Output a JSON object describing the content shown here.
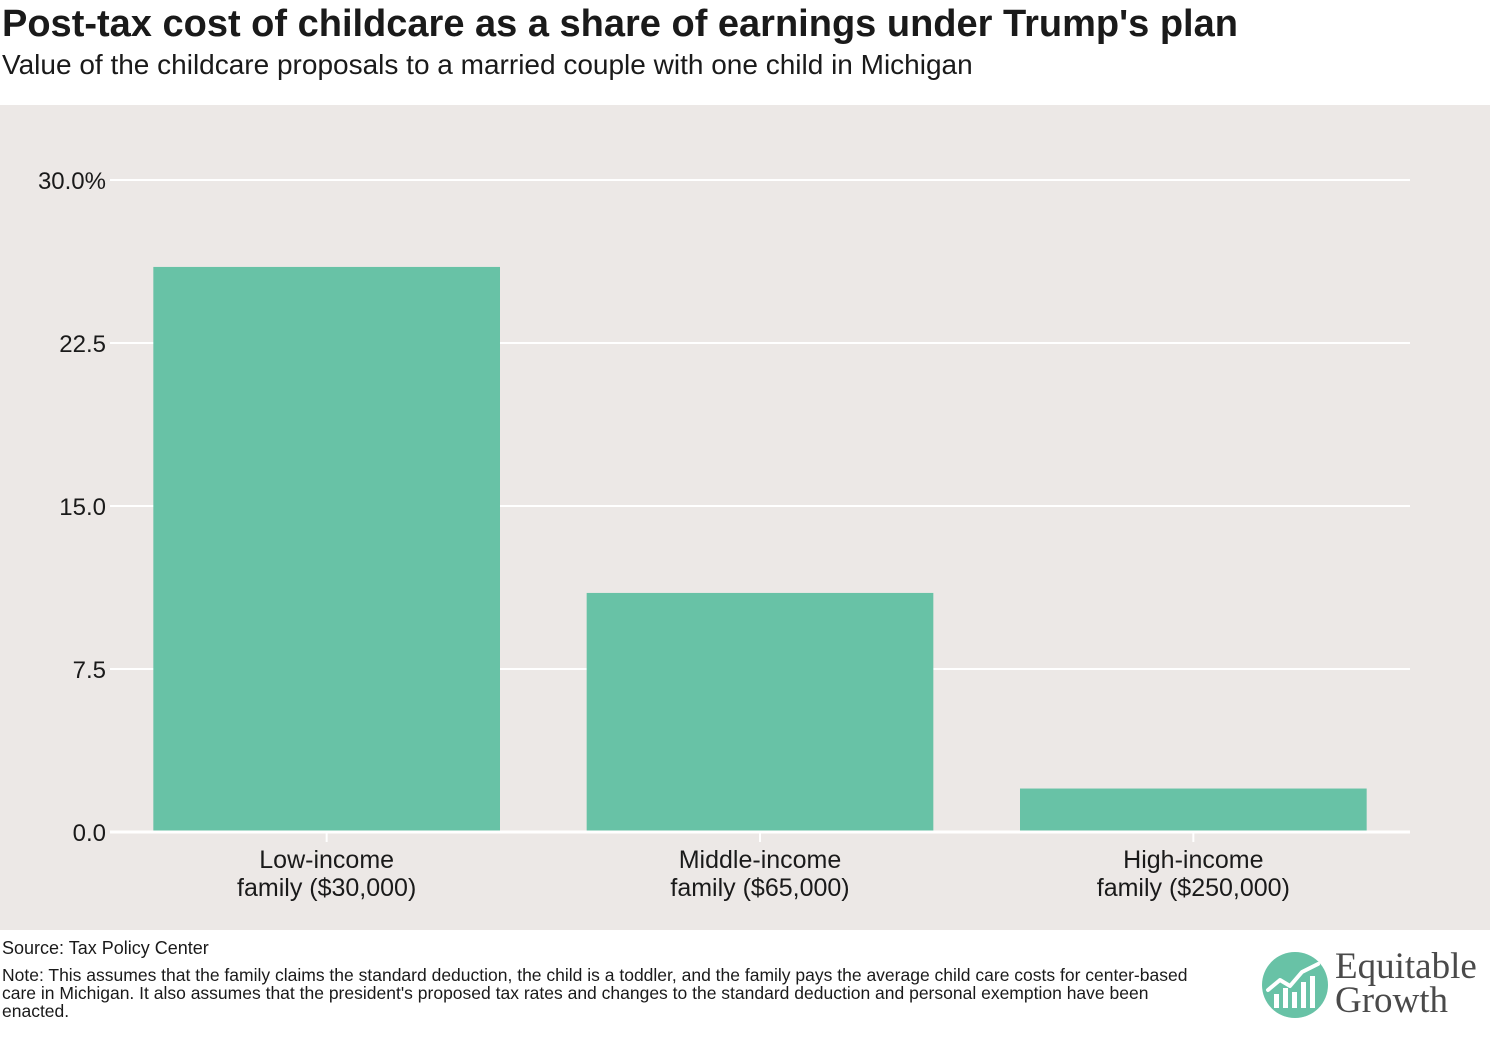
{
  "header": {
    "title": "Post-tax cost of childcare as a share of earnings under Trump's plan",
    "subtitle": "Value of the childcare proposals to a married couple with one child in Michigan"
  },
  "footer": {
    "source": "Source: Tax Policy Center",
    "note": "Note: This assumes that the family claims the standard deduction, the child is a toddler, and the family pays the average child care costs for center-based care in Michigan. It also assumes that the president's proposed tax rates and changes to the standard deduction and personal exemption have been enacted."
  },
  "logo": {
    "line1": "Equitable",
    "line2": "Growth",
    "icon": "growth-chart-circle-icon"
  },
  "colors": {
    "bar": "#68c2a6",
    "panel_background": "#ece8e6",
    "gridline": "#ffffff",
    "logo_circle": "#68c2a6"
  },
  "chart_data": {
    "type": "bar",
    "title": "Post-tax cost of childcare as a share of earnings under Trump's plan",
    "subtitle": "Value of the childcare proposals to a married couple with one child in Michigan",
    "categories": [
      [
        "Low-income",
        "family ($30,000)"
      ],
      [
        "Middle-income",
        "family ($65,000)"
      ],
      [
        "High-income",
        "family ($250,000)"
      ]
    ],
    "values": [
      26.0,
      11.0,
      2.0
    ],
    "yticks": [
      "30.0%",
      "22.5",
      "15.0",
      "7.5",
      "0.0"
    ],
    "ytick_values": [
      30,
      22.5,
      15,
      7.5,
      0
    ],
    "ylim": [
      0,
      30
    ],
    "xlabel": "",
    "ylabel": "",
    "grid": true,
    "legend": "none"
  }
}
